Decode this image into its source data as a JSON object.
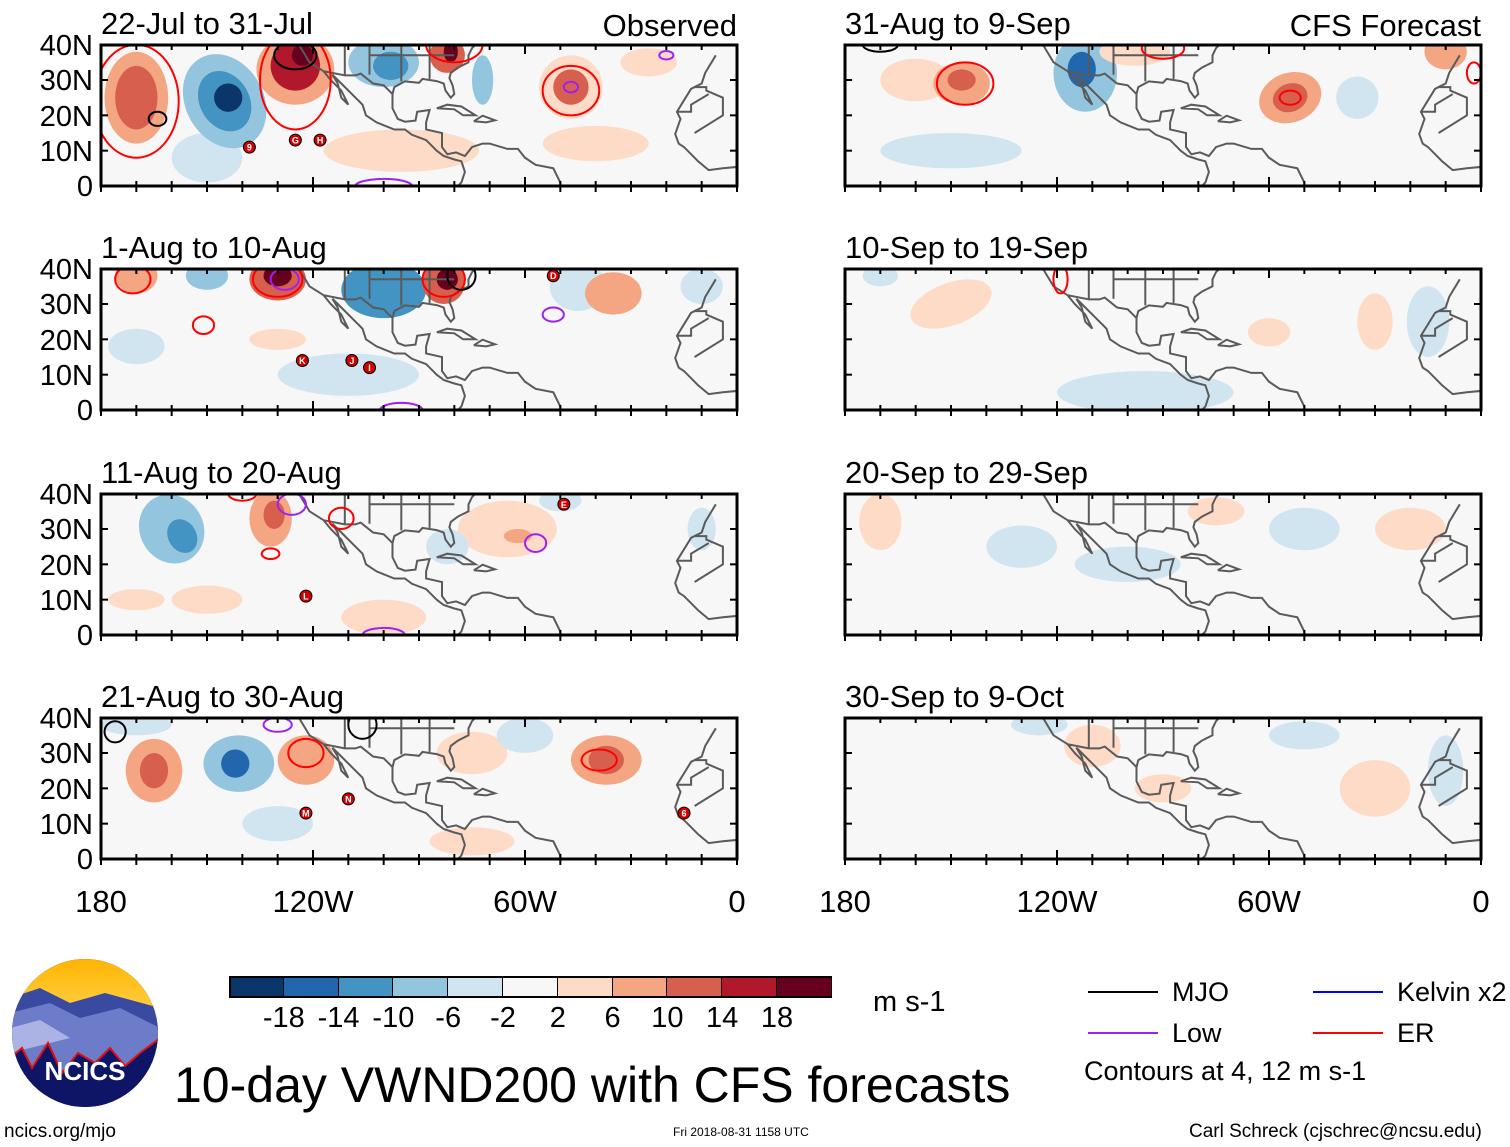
{
  "panels": [
    {
      "title": "22-Jul to 31-Jul",
      "tag": "Observed",
      "storms": [
        "9",
        "G",
        "H"
      ]
    },
    {
      "title": "1-Aug to 10-Aug",
      "storms": [
        "K",
        "J",
        "I",
        "D"
      ]
    },
    {
      "title": "11-Aug to 20-Aug",
      "storms": [
        "L",
        "E"
      ]
    },
    {
      "title": "21-Aug to 30-Aug",
      "storms": [
        "M",
        "N",
        "6"
      ]
    },
    {
      "title": "31-Aug to 9-Sep",
      "tag": "CFS Forecast",
      "storms": []
    },
    {
      "title": "10-Sep to 19-Sep",
      "storms": []
    },
    {
      "title": "20-Sep to 29-Sep",
      "storms": []
    },
    {
      "title": "30-Sep to 9-Oct",
      "storms": []
    }
  ],
  "y_axis": [
    "40N",
    "30N",
    "20N",
    "10N",
    "0"
  ],
  "x_axis": [
    "180",
    "120W",
    "60W",
    "0"
  ],
  "colorbar": {
    "labels": [
      "-18",
      "-14",
      "-10",
      "-6",
      "-2",
      "2",
      "6",
      "10",
      "14",
      "18"
    ],
    "colors": [
      "#0a3669",
      "#2266ad",
      "#4393c3",
      "#93c5de",
      "#d1e5f0",
      "#f7f7f7",
      "#fddbc7",
      "#f4a582",
      "#d6604d",
      "#b2182b",
      "#67001f"
    ],
    "units": "m s-1"
  },
  "legend": {
    "items": [
      {
        "label": "MJO",
        "color": "#000000"
      },
      {
        "label": "Kelvin x2",
        "color": "#0000ff"
      },
      {
        "label": "Low",
        "color": "#a020f0"
      },
      {
        "label": "ER",
        "color": "#ff0000"
      }
    ],
    "note": "Contours at 4, 12 m s-1"
  },
  "title": "10-day VWND200 with CFS forecasts",
  "logo_text": "NCICS",
  "footer": {
    "left": "ncics.org/mjo",
    "center": "Fri 2018-08-31 1158 UTC",
    "right": "Carl Schreck (cjschrec@ncsu.edu)"
  }
}
